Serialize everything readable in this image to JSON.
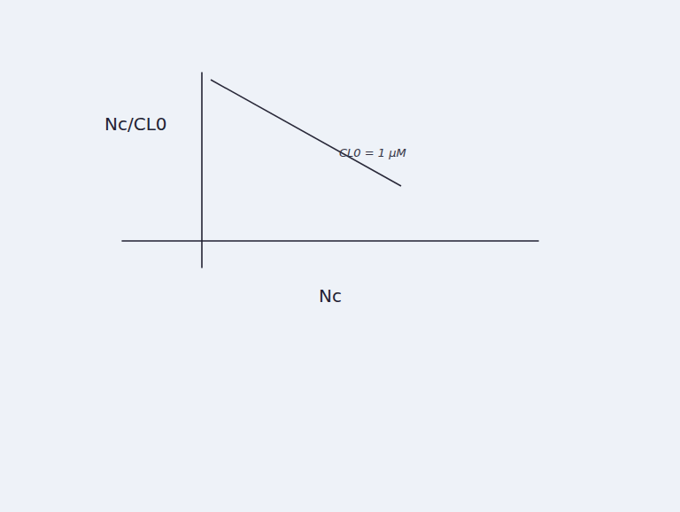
{
  "chart_data": {
    "type": "line",
    "x_label": "Nc",
    "y_label": "Nc/CL0",
    "xlim": [
      -0.9,
      3.8
    ],
    "ylim": [
      -0.3,
      1.9
    ],
    "tick_labels": false,
    "grid": false,
    "series": [
      {
        "name": "CL0 = 1 μM",
        "color": "#2a2a3a",
        "x": [
          0.1,
          2.25
        ],
        "values": [
          1.82,
          0.62
        ]
      }
    ]
  }
}
